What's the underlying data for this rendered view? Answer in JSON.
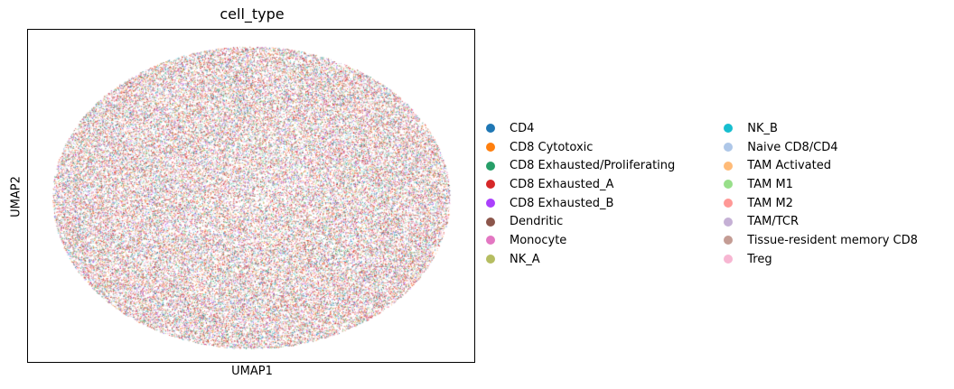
{
  "chart_data": {
    "type": "scatter",
    "title": "cell_type",
    "xlabel": "UMAP1",
    "ylabel": "UMAP2",
    "grid": false,
    "legend_position": "right",
    "legend_columns": 2,
    "categories": [
      {
        "name": "CD4",
        "color": "#1f77b4"
      },
      {
        "name": "CD8 Cytotoxic",
        "color": "#ff7f0e"
      },
      {
        "name": "CD8 Exhausted/Proliferating",
        "color": "#279e68"
      },
      {
        "name": "CD8 Exhausted_A",
        "color": "#d62728"
      },
      {
        "name": "CD8 Exhausted_B",
        "color": "#aa40fc"
      },
      {
        "name": "Dendritic",
        "color": "#8c564b"
      },
      {
        "name": "Monocyte",
        "color": "#e377c2"
      },
      {
        "name": "NK_A",
        "color": "#b5bd61"
      },
      {
        "name": "NK_B",
        "color": "#17becf"
      },
      {
        "name": "Naive CD8/CD4",
        "color": "#aec7e8"
      },
      {
        "name": "TAM Activated",
        "color": "#ffbb78"
      },
      {
        "name": "TAM M1",
        "color": "#98df8a"
      },
      {
        "name": "TAM M2",
        "color": "#ff9896"
      },
      {
        "name": "TAM/TCR",
        "color": "#c5b0d5"
      },
      {
        "name": "Tissue-resident memory CD8",
        "color": "#c49c94"
      },
      {
        "name": "Treg",
        "color": "#f7b6d2"
      }
    ],
    "category_weights": [
      0.08,
      0.06,
      0.07,
      0.22,
      0.05,
      0.05,
      0.06,
      0.05,
      0.04,
      0.07,
      0.05,
      0.05,
      0.07,
      0.05,
      0.04,
      0.05
    ],
    "point_cloud": {
      "shape": "ellipse",
      "approx_points": 60000
    }
  }
}
